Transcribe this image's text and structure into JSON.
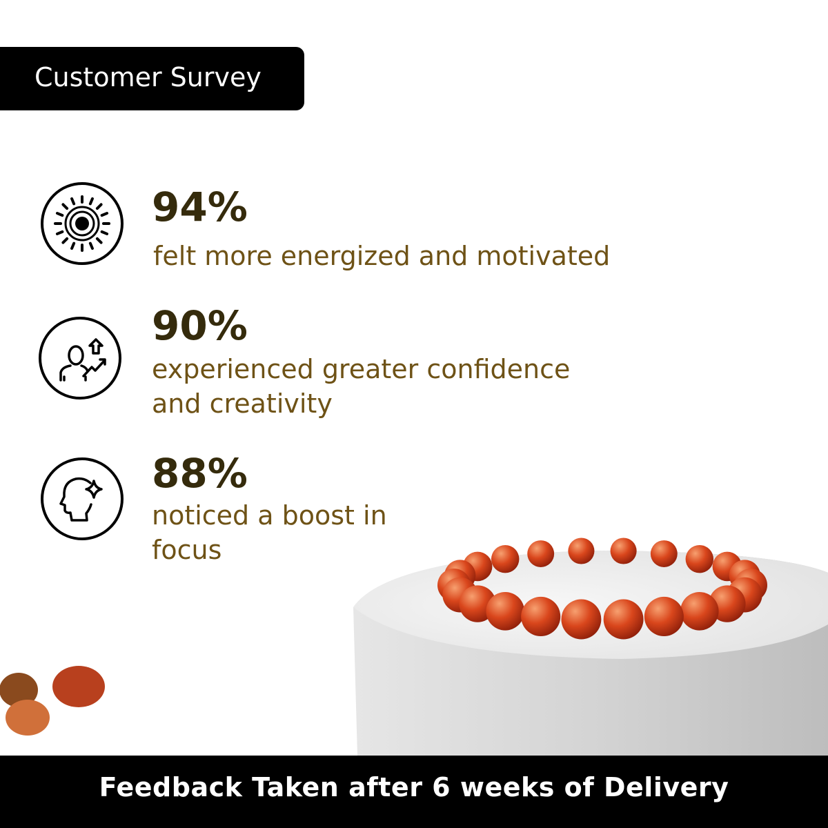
{
  "header": {
    "title": "Customer Survey"
  },
  "stats": [
    {
      "percent": "94%",
      "text_lines": [
        "felt more energized and motivated"
      ],
      "icon": "sun-energy-icon"
    },
    {
      "percent": "90%",
      "text_lines": [
        "experienced greater confidence",
        "and creativity"
      ],
      "icon": "person-growth-icon"
    },
    {
      "percent": "88%",
      "text_lines": [
        "noticed a boost in",
        "focus"
      ],
      "icon": "head-sparkle-icon"
    }
  ],
  "footer": {
    "text": "Feedback Taken after 6 weeks of Delivery"
  },
  "colors": {
    "percent": "#352b0c",
    "description": "#6e5216",
    "banner": "#000000",
    "bead": "#d5461c"
  }
}
